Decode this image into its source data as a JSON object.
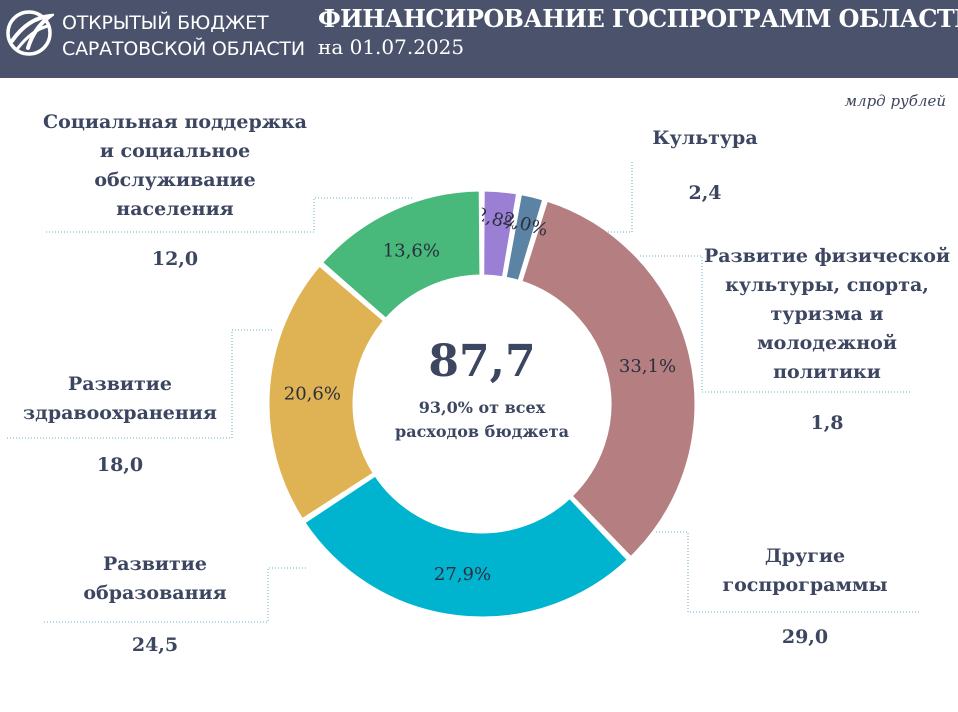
{
  "header": {
    "brand_line1": "ОТКРЫТЫЙ БЮДЖЕТ",
    "brand_line2": "САРАТОВСКОЙ ОБЛАСТИ",
    "title": "ФИНАНСИРОВАНИЕ ГОСПРОГРАММ ОБЛАСТИ",
    "subtitle": "на 01.07.2025"
  },
  "units": "млрд рублей",
  "center": {
    "total": "87,7",
    "note_line1": "93,0% от всех",
    "note_line2": "расходов бюджета"
  },
  "colors": {
    "header_bg": "#4a536b",
    "text": "#3d4660",
    "culture": "#9b7fd4",
    "social": "#48b97a",
    "health": "#dfb253",
    "education": "#00b4cf",
    "other": "#b57f82",
    "sport": "#5b84a4",
    "leader": "#5fb0c8"
  },
  "chart_data": {
    "type": "pie",
    "donut": true,
    "unit": "млрд рублей",
    "total": 87.7,
    "slices": [
      {
        "key": "culture",
        "label_lines": [
          "Культура"
        ],
        "value": 2.4,
        "value_label": "2,4",
        "percent": 2.8,
        "percent_label": "2,8%"
      },
      {
        "key": "social",
        "label_lines": [
          "Социальная поддержка",
          "и социальное",
          "обслуживание",
          "населения"
        ],
        "value": 12.0,
        "value_label": "12,0",
        "percent": 13.6,
        "percent_label": "13,6%"
      },
      {
        "key": "health",
        "label_lines": [
          "Развитие",
          "здравоохранения"
        ],
        "value": 18.0,
        "value_label": "18,0",
        "percent": 20.6,
        "percent_label": "20,6%"
      },
      {
        "key": "education",
        "label_lines": [
          "Развитие",
          "образования"
        ],
        "value": 24.5,
        "value_label": "24,5",
        "percent": 27.9,
        "percent_label": "27,9%"
      },
      {
        "key": "other",
        "label_lines": [
          "Другие",
          "госпрограммы"
        ],
        "value": 29.0,
        "value_label": "29,0",
        "percent": 33.1,
        "percent_label": "33,1%"
      },
      {
        "key": "sport",
        "label_lines": [
          "Развитие физической",
          "культуры, спорта,",
          "туризма и",
          "молодежной",
          "политики"
        ],
        "value": 1.8,
        "value_label": "1,8",
        "percent": 2.0,
        "percent_label": "2,0%"
      }
    ]
  }
}
